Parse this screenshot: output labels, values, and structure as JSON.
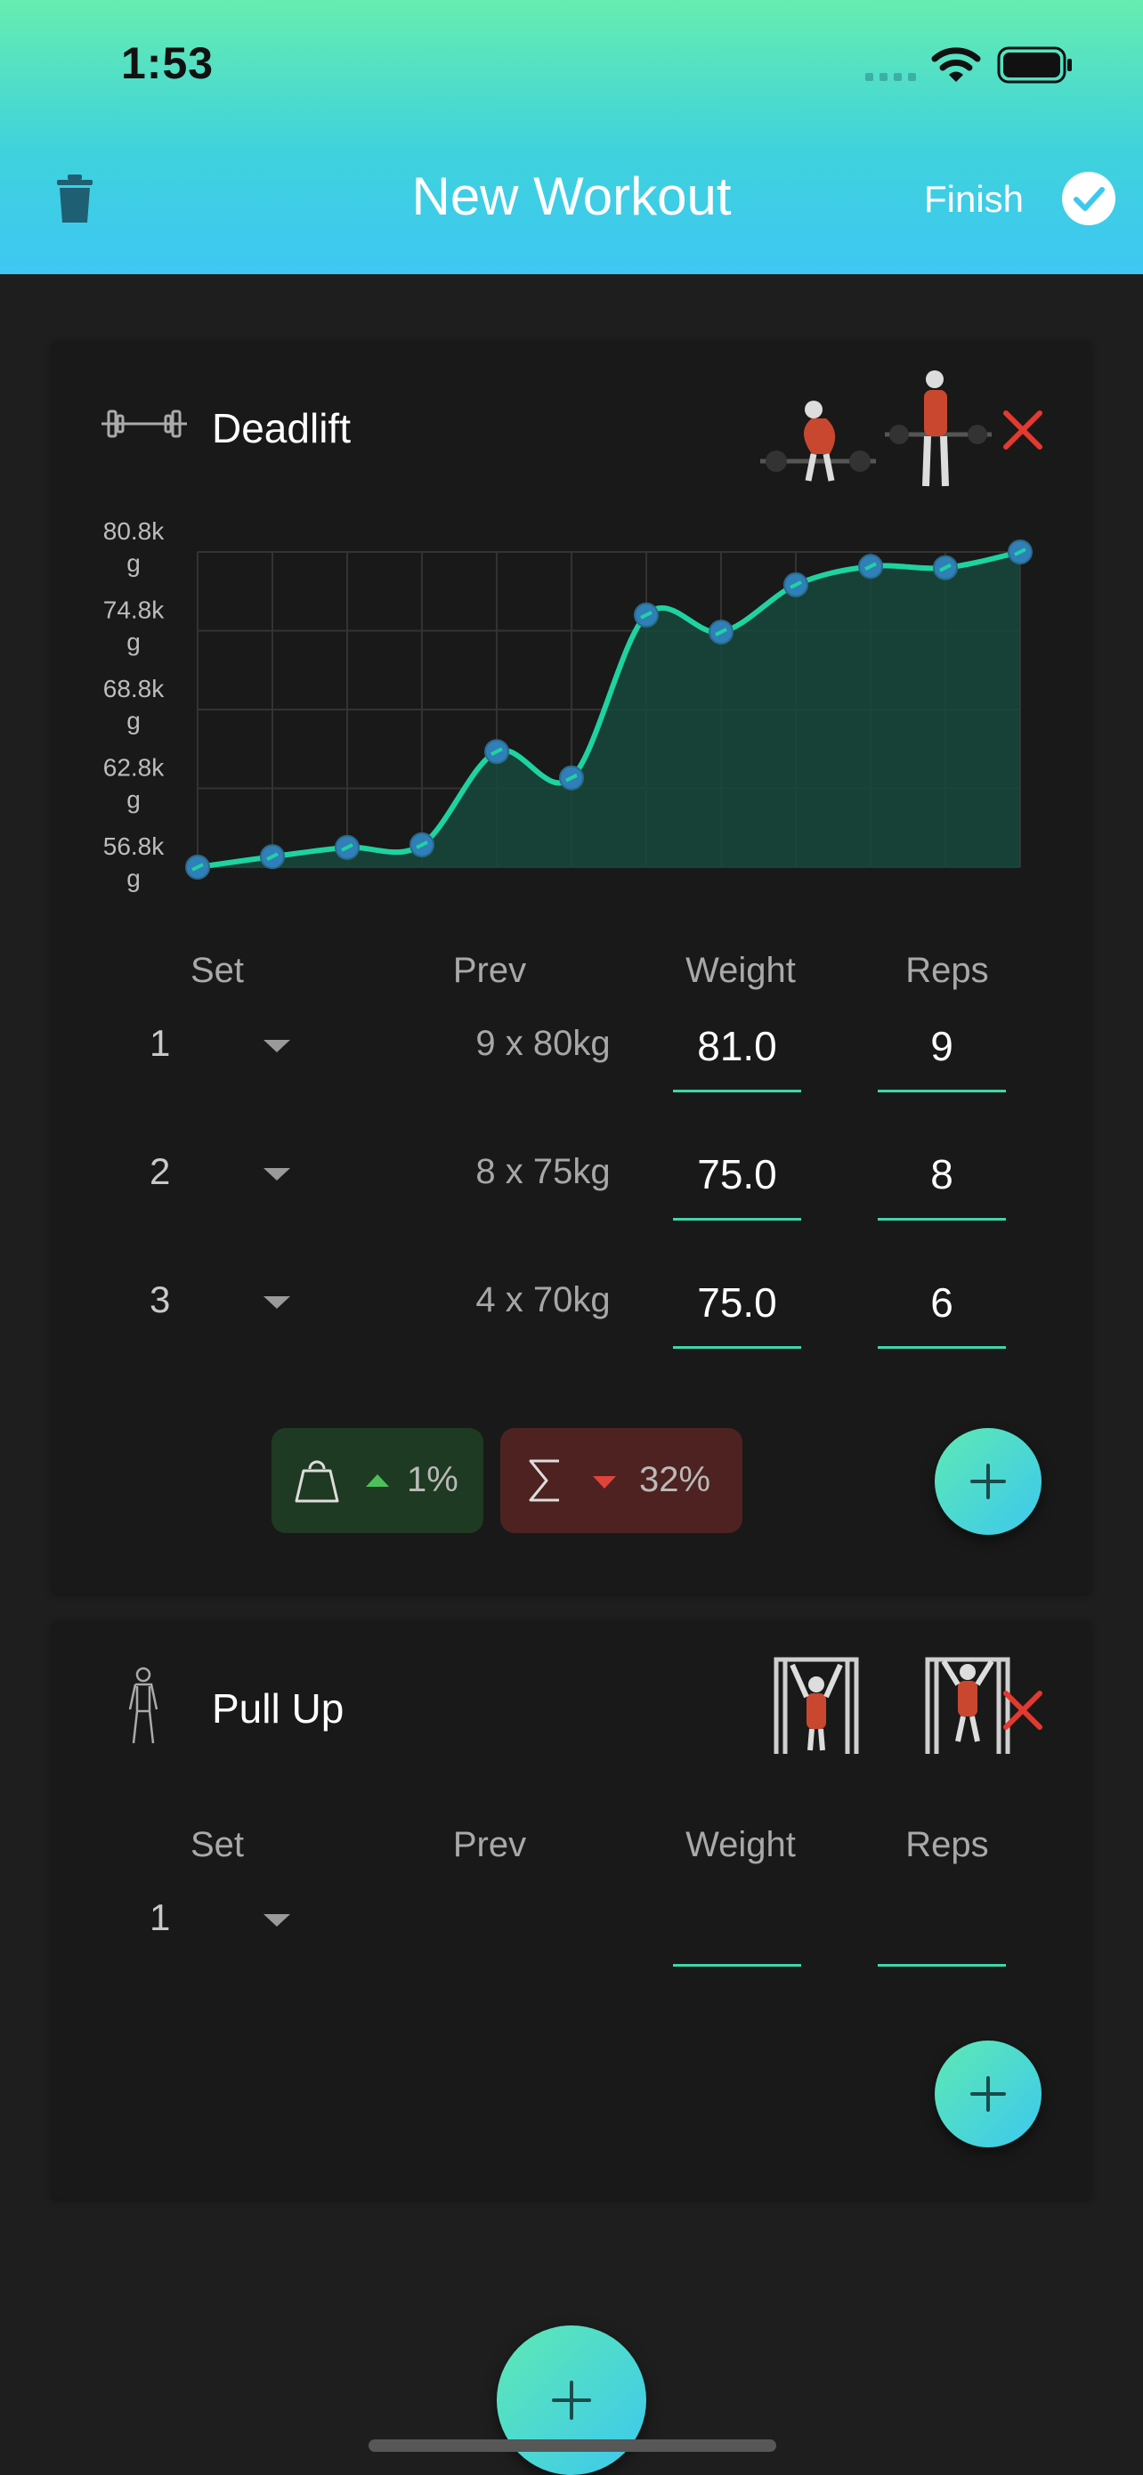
{
  "status_bar": {
    "time": "1:53"
  },
  "header": {
    "title": "New Workout",
    "finish_label": "Finish"
  },
  "columns": {
    "set": "Set",
    "prev": "Prev",
    "weight": "Weight",
    "reps": "Reps"
  },
  "exercises": [
    {
      "name": "Deadlift",
      "sets": [
        {
          "num": "1",
          "prev": "9 x 80kg",
          "weight": "81.0",
          "reps": "9"
        },
        {
          "num": "2",
          "prev": "8 x 75kg",
          "weight": "75.0",
          "reps": "8"
        },
        {
          "num": "3",
          "prev": "4 x 70kg",
          "weight": "75.0",
          "reps": "6"
        }
      ],
      "stats": [
        {
          "icon": "weight-icon",
          "direction": "up",
          "value": "1%",
          "color": "#4cc15b"
        },
        {
          "icon": "sigma-icon",
          "direction": "down",
          "value": "32%",
          "color": "#e0433a"
        }
      ]
    },
    {
      "name": "Pull Up",
      "sets": [
        {
          "num": "1",
          "prev": "",
          "weight": "",
          "reps": ""
        }
      ]
    }
  ],
  "chart_data": {
    "type": "line",
    "yticks": [
      "56.8k\ng",
      "62.8k\ng",
      "68.8k\ng",
      "74.8k\ng",
      "80.8k\ng"
    ],
    "ylim": [
      56.8,
      80.8
    ],
    "y_unit": "kg (thousands)",
    "x": [
      0,
      1,
      2,
      3,
      4,
      5,
      6,
      7,
      8,
      9,
      10,
      11
    ],
    "values": [
      56.8,
      57.6,
      58.3,
      58.5,
      65.6,
      63.6,
      76.0,
      74.7,
      78.3,
      79.7,
      79.6,
      80.8
    ],
    "grid": true,
    "line_color": "#1fd3a0",
    "fill_color": "#17493d",
    "marker_color": "#2f7fb9"
  },
  "colors": {
    "accent_green": "#3fd6a8",
    "delete_red": "#e4392f",
    "header_gradient_top": "#66edb0",
    "header_gradient_bottom": "#3ec7f3"
  }
}
